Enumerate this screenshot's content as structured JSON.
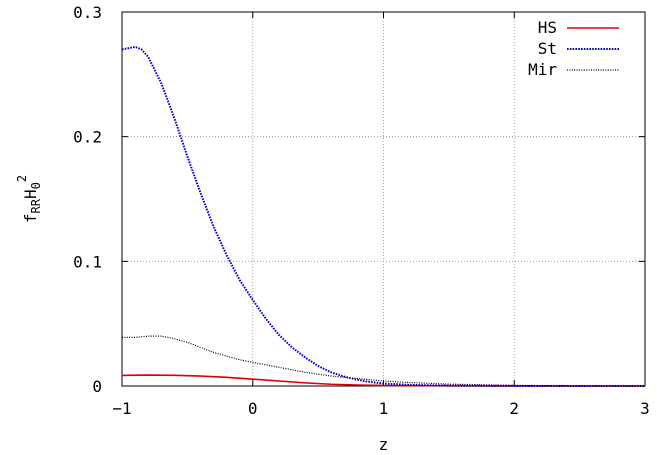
{
  "chart_data": {
    "type": "line",
    "title": "",
    "xlabel": "z",
    "ylabel": {
      "main1": "f",
      "sub1": "RR",
      "main2": "H",
      "sub2": "0",
      "sup2": "2"
    },
    "xlim": [
      -1,
      3
    ],
    "ylim": [
      0,
      0.3
    ],
    "x_ticks": [
      -1,
      0,
      1,
      2,
      3
    ],
    "x_tick_labels": [
      "−1",
      "0",
      "1",
      "2",
      "3"
    ],
    "y_ticks": [
      0,
      0.1,
      0.2,
      0.3
    ],
    "y_tick_labels": [
      "0",
      "0.1",
      "0.2",
      "0.3"
    ],
    "grid": true,
    "legend_position": "top-right",
    "series": [
      {
        "name": "HS",
        "color": "#dd0000",
        "style": "solid",
        "x": [
          -1,
          -0.8,
          -0.6,
          -0.4,
          -0.2,
          0,
          0.2,
          0.4,
          0.6,
          0.8,
          1,
          1.5,
          2,
          2.5,
          3
        ],
        "y": [
          0.0085,
          0.0088,
          0.0086,
          0.008,
          0.007,
          0.0055,
          0.004,
          0.0025,
          0.0014,
          0.0008,
          0.0004,
          0.0001,
          3e-05,
          1e-05,
          0
        ]
      },
      {
        "name": "St",
        "color": "#0000cc",
        "style": "dotted",
        "x": [
          -1,
          -0.95,
          -0.9,
          -0.85,
          -0.8,
          -0.7,
          -0.6,
          -0.5,
          -0.4,
          -0.3,
          -0.2,
          -0.1,
          0,
          0.1,
          0.2,
          0.3,
          0.4,
          0.5,
          0.6,
          0.7,
          0.8,
          0.9,
          1,
          1.2,
          1.5,
          2,
          2.5,
          3
        ],
        "y": [
          0.27,
          0.271,
          0.272,
          0.27,
          0.264,
          0.243,
          0.215,
          0.184,
          0.155,
          0.128,
          0.105,
          0.085,
          0.069,
          0.054,
          0.041,
          0.031,
          0.023,
          0.016,
          0.011,
          0.0075,
          0.005,
          0.0032,
          0.002,
          0.0009,
          0.0003,
          5e-05,
          1e-05,
          0
        ]
      },
      {
        "name": "Mir",
        "color": "#000000",
        "style": "dotted-fine",
        "x": [
          -1,
          -0.9,
          -0.8,
          -0.7,
          -0.6,
          -0.5,
          -0.4,
          -0.3,
          -0.2,
          -0.1,
          0,
          0.2,
          0.4,
          0.6,
          0.8,
          1,
          1.2,
          1.5,
          2,
          2.5,
          3
        ],
        "y": [
          0.039,
          0.039,
          0.04,
          0.04,
          0.038,
          0.035,
          0.031,
          0.027,
          0.024,
          0.021,
          0.019,
          0.015,
          0.011,
          0.008,
          0.006,
          0.004,
          0.0028,
          0.0015,
          0.0005,
          0.0001,
          0
        ]
      }
    ]
  }
}
